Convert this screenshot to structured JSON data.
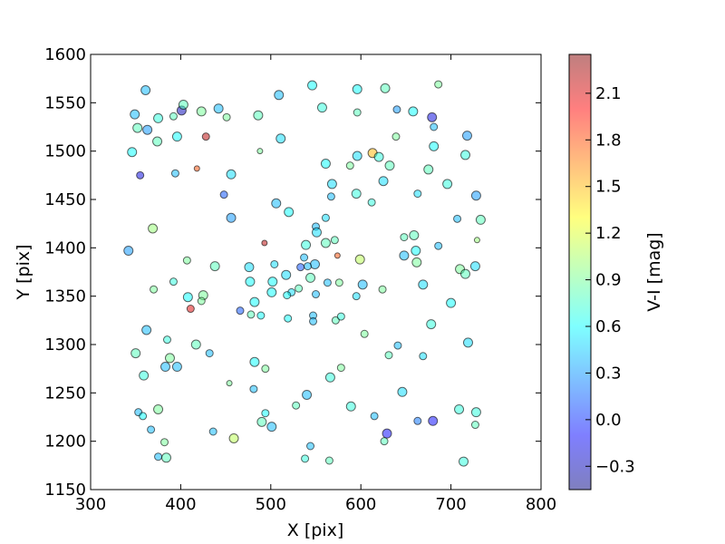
{
  "chart_data": {
    "type": "scatter",
    "title": "",
    "xlabel": "X [pix]",
    "ylabel": "Y [pix]",
    "xlim": [
      300,
      800
    ],
    "ylim": [
      1150,
      1600
    ],
    "xticks": [
      "300",
      "400",
      "500",
      "600",
      "700",
      "800"
    ],
    "yticks": [
      "1150",
      "1200",
      "1250",
      "1300",
      "1350",
      "1400",
      "1450",
      "1500",
      "1550",
      "1600"
    ],
    "grid": false,
    "legend": "none",
    "colorbar": {
      "label": "V-I [mag]",
      "range": [
        -0.45,
        2.35
      ],
      "ticks": [
        "−0.3",
        "0.0",
        "0.3",
        "0.6",
        "0.9",
        "1.2",
        "1.5",
        "1.8",
        "2.1"
      ],
      "colormap": "jet",
      "alpha": 0.5
    },
    "points": [
      {
        "x": 361,
        "y": 1563,
        "c": 0.4,
        "s": "l"
      },
      {
        "x": 349,
        "y": 1538,
        "c": 0.4,
        "s": "l"
      },
      {
        "x": 363,
        "y": 1522,
        "c": 0.3,
        "s": "l"
      },
      {
        "x": 352,
        "y": 1524,
        "c": 0.8,
        "s": "l"
      },
      {
        "x": 375,
        "y": 1534,
        "c": 0.7,
        "s": "l"
      },
      {
        "x": 392,
        "y": 1536,
        "c": 0.8,
        "s": "m"
      },
      {
        "x": 401,
        "y": 1542,
        "c": -0.3,
        "s": "l"
      },
      {
        "x": 403,
        "y": 1548,
        "c": 0.8,
        "s": "l"
      },
      {
        "x": 423,
        "y": 1541,
        "c": 0.9,
        "s": "l"
      },
      {
        "x": 442,
        "y": 1544,
        "c": 0.4,
        "s": "l"
      },
      {
        "x": 451,
        "y": 1535,
        "c": 0.9,
        "s": "m"
      },
      {
        "x": 428,
        "y": 1515,
        "c": 2.2,
        "s": "m"
      },
      {
        "x": 346,
        "y": 1499,
        "c": 0.6,
        "s": "l"
      },
      {
        "x": 374,
        "y": 1510,
        "c": 0.8,
        "s": "l"
      },
      {
        "x": 396,
        "y": 1515,
        "c": 0.6,
        "s": "l"
      },
      {
        "x": 355,
        "y": 1475,
        "c": -0.2,
        "s": "m"
      },
      {
        "x": 394,
        "y": 1477,
        "c": 0.4,
        "s": "m"
      },
      {
        "x": 418,
        "y": 1482,
        "c": 1.8,
        "s": "s"
      },
      {
        "x": 456,
        "y": 1476,
        "c": 0.5,
        "s": "l"
      },
      {
        "x": 448,
        "y": 1455,
        "c": 0.1,
        "s": "m"
      },
      {
        "x": 456,
        "y": 1431,
        "c": 0.3,
        "s": "l"
      },
      {
        "x": 369,
        "y": 1420,
        "c": 1.0,
        "s": "l"
      },
      {
        "x": 342,
        "y": 1397,
        "c": 0.3,
        "s": "l"
      },
      {
        "x": 486,
        "y": 1537,
        "c": 0.8,
        "s": "l"
      },
      {
        "x": 509,
        "y": 1558,
        "c": 0.4,
        "s": "l"
      },
      {
        "x": 546,
        "y": 1568,
        "c": 0.6,
        "s": "l"
      },
      {
        "x": 557,
        "y": 1545,
        "c": 0.7,
        "s": "l"
      },
      {
        "x": 596,
        "y": 1564,
        "c": 0.6,
        "s": "l"
      },
      {
        "x": 627,
        "y": 1565,
        "c": 0.8,
        "s": "l"
      },
      {
        "x": 686,
        "y": 1569,
        "c": 0.9,
        "s": "m"
      },
      {
        "x": 596,
        "y": 1540,
        "c": 0.8,
        "s": "m"
      },
      {
        "x": 640,
        "y": 1543,
        "c": 0.3,
        "s": "m"
      },
      {
        "x": 658,
        "y": 1541,
        "c": 0.6,
        "s": "l"
      },
      {
        "x": 679,
        "y": 1535,
        "c": -0.2,
        "s": "l"
      },
      {
        "x": 681,
        "y": 1525,
        "c": 0.4,
        "s": "m"
      },
      {
        "x": 718,
        "y": 1516,
        "c": 0.3,
        "s": "l"
      },
      {
        "x": 511,
        "y": 1513,
        "c": 0.5,
        "s": "l"
      },
      {
        "x": 488,
        "y": 1500,
        "c": 0.9,
        "s": "s"
      },
      {
        "x": 639,
        "y": 1515,
        "c": 0.9,
        "s": "m"
      },
      {
        "x": 561,
        "y": 1487,
        "c": 0.6,
        "s": "l"
      },
      {
        "x": 588,
        "y": 1485,
        "c": 0.9,
        "s": "m"
      },
      {
        "x": 596,
        "y": 1495,
        "c": 0.5,
        "s": "l"
      },
      {
        "x": 613,
        "y": 1498,
        "c": 1.5,
        "s": "l"
      },
      {
        "x": 620,
        "y": 1494,
        "c": 0.7,
        "s": "l"
      },
      {
        "x": 632,
        "y": 1485,
        "c": 0.8,
        "s": "l"
      },
      {
        "x": 681,
        "y": 1505,
        "c": 0.6,
        "s": "l"
      },
      {
        "x": 716,
        "y": 1496,
        "c": 0.7,
        "s": "l"
      },
      {
        "x": 675,
        "y": 1481,
        "c": 0.8,
        "s": "l"
      },
      {
        "x": 568,
        "y": 1466,
        "c": 0.5,
        "s": "l"
      },
      {
        "x": 595,
        "y": 1456,
        "c": 0.7,
        "s": "l"
      },
      {
        "x": 625,
        "y": 1469,
        "c": 0.5,
        "s": "l"
      },
      {
        "x": 567,
        "y": 1453,
        "c": 0.4,
        "s": "m"
      },
      {
        "x": 612,
        "y": 1447,
        "c": 0.7,
        "s": "m"
      },
      {
        "x": 663,
        "y": 1456,
        "c": 0.5,
        "s": "m"
      },
      {
        "x": 696,
        "y": 1466,
        "c": 0.7,
        "s": "l"
      },
      {
        "x": 728,
        "y": 1454,
        "c": 0.3,
        "s": "l"
      },
      {
        "x": 506,
        "y": 1446,
        "c": 0.4,
        "s": "l"
      },
      {
        "x": 520,
        "y": 1437,
        "c": 0.6,
        "s": "l"
      },
      {
        "x": 561,
        "y": 1431,
        "c": 0.5,
        "s": "m"
      },
      {
        "x": 550,
        "y": 1422,
        "c": 0.4,
        "s": "m"
      },
      {
        "x": 551,
        "y": 1416,
        "c": 0.5,
        "s": "l"
      },
      {
        "x": 571,
        "y": 1408,
        "c": 0.8,
        "s": "m"
      },
      {
        "x": 539,
        "y": 1403,
        "c": 0.7,
        "s": "l"
      },
      {
        "x": 561,
        "y": 1405,
        "c": 0.8,
        "s": "l"
      },
      {
        "x": 574,
        "y": 1392,
        "c": 1.8,
        "s": "s"
      },
      {
        "x": 493,
        "y": 1405,
        "c": 2.2,
        "s": "s"
      },
      {
        "x": 537,
        "y": 1390,
        "c": 0.4,
        "s": "m"
      },
      {
        "x": 549,
        "y": 1383,
        "c": 0.4,
        "s": "l"
      },
      {
        "x": 541,
        "y": 1381,
        "c": 0.4,
        "s": "m"
      },
      {
        "x": 533,
        "y": 1380,
        "c": 0.1,
        "s": "m"
      },
      {
        "x": 504,
        "y": 1383,
        "c": 0.5,
        "s": "m"
      },
      {
        "x": 476,
        "y": 1380,
        "c": 0.5,
        "s": "l"
      },
      {
        "x": 599,
        "y": 1388,
        "c": 1.1,
        "s": "l"
      },
      {
        "x": 648,
        "y": 1411,
        "c": 0.8,
        "s": "m"
      },
      {
        "x": 659,
        "y": 1413,
        "c": 0.8,
        "s": "l"
      },
      {
        "x": 661,
        "y": 1397,
        "c": 0.6,
        "s": "l"
      },
      {
        "x": 648,
        "y": 1392,
        "c": 0.4,
        "s": "l"
      },
      {
        "x": 662,
        "y": 1385,
        "c": 0.9,
        "s": "l"
      },
      {
        "x": 686,
        "y": 1402,
        "c": 0.4,
        "s": "m"
      },
      {
        "x": 707,
        "y": 1430,
        "c": 0.4,
        "s": "m"
      },
      {
        "x": 733,
        "y": 1429,
        "c": 0.8,
        "s": "l"
      },
      {
        "x": 729,
        "y": 1408,
        "c": 1.0,
        "s": "s"
      },
      {
        "x": 710,
        "y": 1378,
        "c": 0.9,
        "s": "l"
      },
      {
        "x": 716,
        "y": 1373,
        "c": 0.8,
        "s": "l"
      },
      {
        "x": 727,
        "y": 1381,
        "c": 0.5,
        "s": "l"
      },
      {
        "x": 669,
        "y": 1362,
        "c": 0.5,
        "s": "l"
      },
      {
        "x": 700,
        "y": 1343,
        "c": 0.6,
        "s": "l"
      },
      {
        "x": 678,
        "y": 1321,
        "c": 0.7,
        "s": "l"
      },
      {
        "x": 407,
        "y": 1387,
        "c": 0.9,
        "s": "m"
      },
      {
        "x": 438,
        "y": 1381,
        "c": 0.8,
        "s": "l"
      },
      {
        "x": 477,
        "y": 1365,
        "c": 0.6,
        "s": "l"
      },
      {
        "x": 502,
        "y": 1365,
        "c": 0.6,
        "s": "l"
      },
      {
        "x": 517,
        "y": 1372,
        "c": 0.5,
        "s": "l"
      },
      {
        "x": 531,
        "y": 1358,
        "c": 0.8,
        "s": "m"
      },
      {
        "x": 544,
        "y": 1369,
        "c": 0.8,
        "s": "l"
      },
      {
        "x": 563,
        "y": 1364,
        "c": 0.4,
        "s": "m"
      },
      {
        "x": 576,
        "y": 1364,
        "c": 0.9,
        "s": "m"
      },
      {
        "x": 602,
        "y": 1362,
        "c": 0.4,
        "s": "l"
      },
      {
        "x": 624,
        "y": 1357,
        "c": 0.9,
        "s": "m"
      },
      {
        "x": 370,
        "y": 1357,
        "c": 0.9,
        "s": "m"
      },
      {
        "x": 392,
        "y": 1365,
        "c": 0.7,
        "s": "m"
      },
      {
        "x": 408,
        "y": 1349,
        "c": 0.6,
        "s": "l"
      },
      {
        "x": 425,
        "y": 1351,
        "c": 0.9,
        "s": "l"
      },
      {
        "x": 423,
        "y": 1345,
        "c": 0.9,
        "s": "m"
      },
      {
        "x": 411,
        "y": 1337,
        "c": 2.1,
        "s": "m"
      },
      {
        "x": 501,
        "y": 1354,
        "c": 0.6,
        "s": "l"
      },
      {
        "x": 523,
        "y": 1354,
        "c": 0.5,
        "s": "m"
      },
      {
        "x": 518,
        "y": 1351,
        "c": 0.6,
        "s": "m"
      },
      {
        "x": 550,
        "y": 1352,
        "c": 0.4,
        "s": "m"
      },
      {
        "x": 595,
        "y": 1350,
        "c": 0.5,
        "s": "m"
      },
      {
        "x": 482,
        "y": 1344,
        "c": 0.6,
        "s": "l"
      },
      {
        "x": 466,
        "y": 1335,
        "c": 0.1,
        "s": "m"
      },
      {
        "x": 478,
        "y": 1331,
        "c": 0.8,
        "s": "m"
      },
      {
        "x": 489,
        "y": 1330,
        "c": 0.6,
        "s": "m"
      },
      {
        "x": 519,
        "y": 1327,
        "c": 0.6,
        "s": "m"
      },
      {
        "x": 547,
        "y": 1330,
        "c": 0.4,
        "s": "m"
      },
      {
        "x": 547,
        "y": 1324,
        "c": 0.4,
        "s": "m"
      },
      {
        "x": 572,
        "y": 1325,
        "c": 0.8,
        "s": "m"
      },
      {
        "x": 578,
        "y": 1329,
        "c": 0.7,
        "s": "m"
      },
      {
        "x": 362,
        "y": 1315,
        "c": 0.4,
        "s": "l"
      },
      {
        "x": 385,
        "y": 1305,
        "c": 0.7,
        "s": "m"
      },
      {
        "x": 417,
        "y": 1300,
        "c": 0.8,
        "s": "l"
      },
      {
        "x": 604,
        "y": 1311,
        "c": 0.9,
        "s": "m"
      },
      {
        "x": 350,
        "y": 1291,
        "c": 0.8,
        "s": "l"
      },
      {
        "x": 388,
        "y": 1286,
        "c": 0.9,
        "s": "l"
      },
      {
        "x": 432,
        "y": 1291,
        "c": 0.4,
        "s": "m"
      },
      {
        "x": 383,
        "y": 1277,
        "c": 0.4,
        "s": "l"
      },
      {
        "x": 396,
        "y": 1277,
        "c": 0.4,
        "s": "l"
      },
      {
        "x": 482,
        "y": 1282,
        "c": 0.6,
        "s": "l"
      },
      {
        "x": 494,
        "y": 1275,
        "c": 0.9,
        "s": "m"
      },
      {
        "x": 578,
        "y": 1276,
        "c": 0.9,
        "s": "m"
      },
      {
        "x": 631,
        "y": 1289,
        "c": 0.8,
        "s": "m"
      },
      {
        "x": 641,
        "y": 1299,
        "c": 0.4,
        "s": "m"
      },
      {
        "x": 669,
        "y": 1288,
        "c": 0.5,
        "s": "m"
      },
      {
        "x": 719,
        "y": 1302,
        "c": 0.5,
        "s": "l"
      },
      {
        "x": 359,
        "y": 1268,
        "c": 0.7,
        "s": "l"
      },
      {
        "x": 454,
        "y": 1260,
        "c": 0.9,
        "s": "s"
      },
      {
        "x": 566,
        "y": 1266,
        "c": 0.7,
        "s": "l"
      },
      {
        "x": 481,
        "y": 1254,
        "c": 0.4,
        "s": "m"
      },
      {
        "x": 646,
        "y": 1251,
        "c": 0.5,
        "s": "l"
      },
      {
        "x": 540,
        "y": 1248,
        "c": 0.4,
        "s": "l"
      },
      {
        "x": 528,
        "y": 1237,
        "c": 0.8,
        "s": "m"
      },
      {
        "x": 589,
        "y": 1236,
        "c": 0.7,
        "s": "l"
      },
      {
        "x": 375,
        "y": 1233,
        "c": 0.9,
        "s": "l"
      },
      {
        "x": 353,
        "y": 1230,
        "c": 0.4,
        "s": "m"
      },
      {
        "x": 358,
        "y": 1226,
        "c": 0.6,
        "s": "m"
      },
      {
        "x": 494,
        "y": 1229,
        "c": 0.6,
        "s": "m"
      },
      {
        "x": 615,
        "y": 1226,
        "c": 0.4,
        "s": "m"
      },
      {
        "x": 709,
        "y": 1233,
        "c": 0.7,
        "s": "l"
      },
      {
        "x": 728,
        "y": 1230,
        "c": 0.7,
        "s": "l"
      },
      {
        "x": 490,
        "y": 1220,
        "c": 0.8,
        "s": "l"
      },
      {
        "x": 501,
        "y": 1215,
        "c": 0.4,
        "s": "l"
      },
      {
        "x": 663,
        "y": 1221,
        "c": 0.2,
        "s": "m"
      },
      {
        "x": 680,
        "y": 1221,
        "c": -0.1,
        "s": "l"
      },
      {
        "x": 727,
        "y": 1217,
        "c": 0.8,
        "s": "m"
      },
      {
        "x": 367,
        "y": 1212,
        "c": 0.4,
        "s": "m"
      },
      {
        "x": 436,
        "y": 1210,
        "c": 0.4,
        "s": "m"
      },
      {
        "x": 629,
        "y": 1208,
        "c": -0.1,
        "s": "l"
      },
      {
        "x": 459,
        "y": 1203,
        "c": 1.1,
        "s": "l"
      },
      {
        "x": 382,
        "y": 1199,
        "c": 0.9,
        "s": "m"
      },
      {
        "x": 626,
        "y": 1200,
        "c": 0.8,
        "s": "m"
      },
      {
        "x": 544,
        "y": 1195,
        "c": 0.4,
        "s": "m"
      },
      {
        "x": 375,
        "y": 1184,
        "c": 0.4,
        "s": "m"
      },
      {
        "x": 384,
        "y": 1183,
        "c": 0.8,
        "s": "l"
      },
      {
        "x": 538,
        "y": 1182,
        "c": 0.7,
        "s": "m"
      },
      {
        "x": 565,
        "y": 1180,
        "c": 0.8,
        "s": "m"
      },
      {
        "x": 714,
        "y": 1179,
        "c": 0.7,
        "s": "l"
      }
    ]
  }
}
